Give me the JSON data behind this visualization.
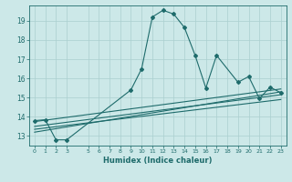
{
  "title": "",
  "xlabel": "Humidex (Indice chaleur)",
  "ylabel": "",
  "background_color": "#cce8e8",
  "grid_color": "#aacfcf",
  "line_color": "#1e6b6b",
  "xlim": [
    -0.5,
    23.5
  ],
  "ylim": [
    12.5,
    19.8
  ],
  "yticks": [
    13,
    14,
    15,
    16,
    17,
    18,
    19
  ],
  "xticks": [
    0,
    1,
    2,
    3,
    5,
    6,
    7,
    8,
    9,
    10,
    11,
    12,
    13,
    14,
    15,
    16,
    17,
    18,
    19,
    20,
    21,
    22,
    23
  ],
  "series1_x": [
    0,
    1,
    2,
    3,
    9,
    10,
    11,
    12,
    13,
    14,
    15,
    16,
    17,
    19,
    20,
    21,
    22,
    23
  ],
  "series1_y": [
    13.8,
    13.85,
    12.8,
    12.8,
    15.4,
    16.5,
    19.2,
    19.55,
    19.35,
    18.65,
    17.2,
    15.5,
    17.2,
    15.8,
    16.1,
    14.95,
    15.55,
    15.25
  ],
  "series2_x": [
    0,
    23
  ],
  "series2_y": [
    13.2,
    15.3
  ],
  "series3_x": [
    0,
    23
  ],
  "series3_y": [
    13.5,
    15.15
  ],
  "series4_x": [
    0,
    23
  ],
  "series4_y": [
    13.75,
    15.45
  ],
  "series5_x": [
    0,
    23
  ],
  "series5_y": [
    13.35,
    14.9
  ]
}
